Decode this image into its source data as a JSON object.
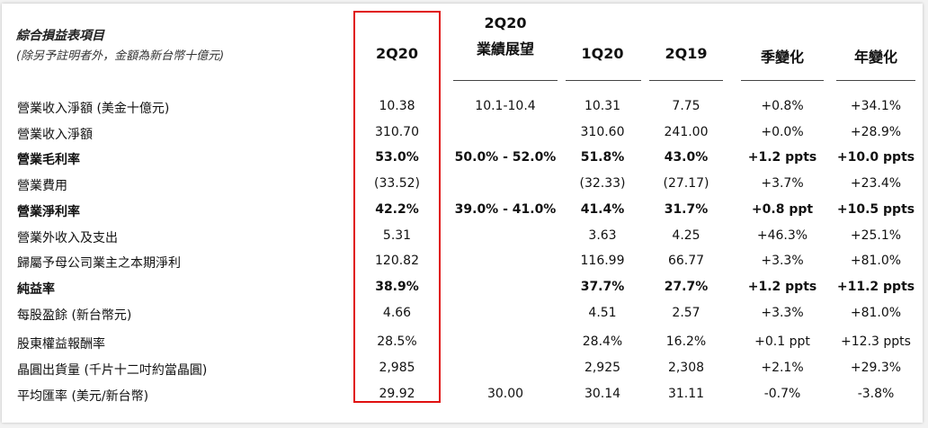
{
  "header": {
    "title": "綜合損益表項目",
    "subtitle": "(除另予註明者外，金額為新台幣十億元)"
  },
  "columns": [
    {
      "line1": "",
      "line2": "2Q20"
    },
    {
      "line1": "2Q20",
      "line2": "業績展望"
    },
    {
      "line1": "",
      "line2": "1Q20"
    },
    {
      "line1": "",
      "line2": "2Q19"
    },
    {
      "line1": "",
      "line2": "季變化"
    },
    {
      "line1": "",
      "line2": "年變化"
    }
  ],
  "rows": [
    {
      "label": "營業收入淨額 (美金十億元)",
      "bold": false,
      "cells": [
        "10.38",
        "10.1-10.4",
        "10.31",
        "7.75",
        "+0.8%",
        "+34.1%"
      ]
    },
    {
      "label": "營業收入淨額",
      "bold": false,
      "cells": [
        "310.70",
        "",
        "310.60",
        "241.00",
        "+0.0%",
        "+28.9%"
      ]
    },
    {
      "label": "營業毛利率",
      "bold": true,
      "cells": [
        "53.0%",
        "50.0% - 52.0%",
        "51.8%",
        "43.0%",
        "+1.2 ppts",
        "+10.0 ppts"
      ]
    },
    {
      "label": "營業費用",
      "bold": false,
      "cells": [
        "(33.52)",
        "",
        "(32.33)",
        "(27.17)",
        "+3.7%",
        "+23.4%"
      ]
    },
    {
      "label": "營業淨利率",
      "bold": true,
      "cells": [
        "42.2%",
        "39.0% - 41.0%",
        "41.4%",
        "31.7%",
        "+0.8 ppt",
        "+10.5 ppts"
      ]
    },
    {
      "label": "營業外收入及支出",
      "bold": false,
      "cells": [
        "5.31",
        "",
        "3.63",
        "4.25",
        "+46.3%",
        "+25.1%"
      ]
    },
    {
      "label": "歸屬予母公司業主之本期淨利",
      "bold": false,
      "cells": [
        "120.82",
        "",
        "116.99",
        "66.77",
        "+3.3%",
        "+81.0%"
      ]
    },
    {
      "label": "純益率",
      "bold": true,
      "cells": [
        "38.9%",
        "",
        "37.7%",
        "27.7%",
        "+1.2 ppts",
        "+11.2 ppts"
      ]
    },
    {
      "label": "每股盈餘 (新台幣元)",
      "bold": false,
      "cells": [
        "4.66",
        "",
        "4.51",
        "2.57",
        "+3.3%",
        "+81.0%"
      ]
    },
    {
      "label": "股東權益報酬率",
      "bold": false,
      "cells": [
        "28.5%",
        "",
        "28.4%",
        "16.2%",
        "+0.1 ppt",
        "+12.3 ppts"
      ]
    },
    {
      "label": "晶圓出貨量 (千片十二吋約當晶圓)",
      "bold": false,
      "cells": [
        "2,985",
        "",
        "2,925",
        "2,308",
        "+2.1%",
        "+29.3%"
      ]
    },
    {
      "label": "平均匯率 (美元/新台幣)",
      "bold": false,
      "cells": [
        "29.92",
        "30.00",
        "30.14",
        "31.11",
        "-0.7%",
        "-3.8%"
      ]
    }
  ],
  "highlight_color": "#e01010"
}
